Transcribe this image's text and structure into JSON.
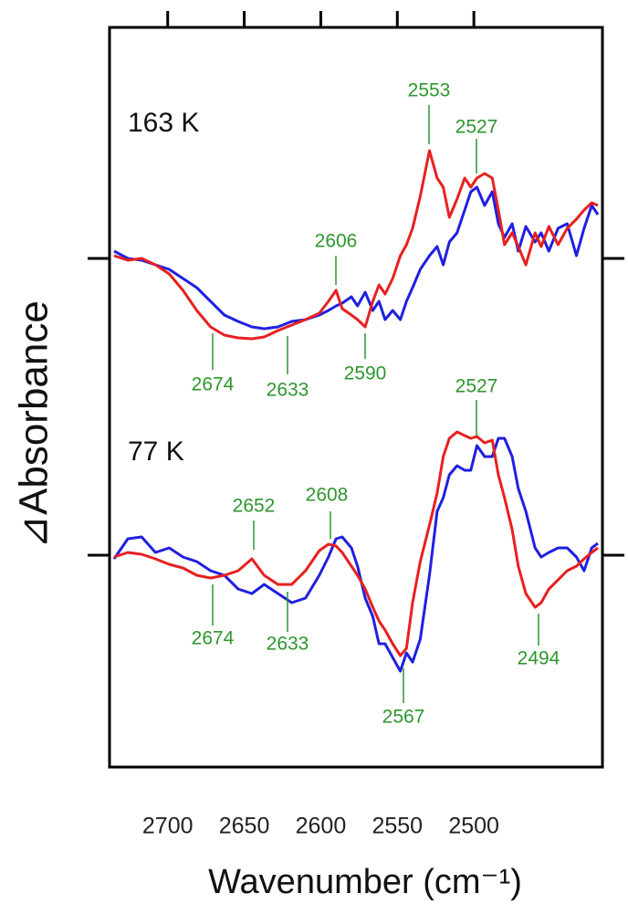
{
  "chart_data": {
    "type": "line",
    "y_label": "⊿Absorbance",
    "x_label": "Wavenumber (cm⁻¹)",
    "panel_labels": [
      "163 K",
      "77 K"
    ],
    "annotations": [
      "2553",
      "2527",
      "2606",
      "2674",
      "2633",
      "2590",
      "2527",
      "2652",
      "2608",
      "2674",
      "2633",
      "2567",
      "2494"
    ],
    "xlim": [
      2738,
      2416
    ],
    "xticks": [
      2700,
      2650,
      2600,
      2550,
      2500
    ],
    "ylim": [
      0,
      81
    ],
    "yticks": [
      23.2,
      55.7
    ],
    "x": [
      2735,
      2726,
      2717,
      2708,
      2699,
      2690,
      2681,
      2672,
      2663,
      2654,
      2645,
      2637,
      2628,
      2619,
      2610,
      2601,
      2595,
      2590,
      2586,
      2580,
      2576,
      2571,
      2566,
      2562,
      2558,
      2553,
      2548,
      2544,
      2540,
      2535,
      2529,
      2524,
      2520,
      2516,
      2511,
      2506,
      2502,
      2498,
      2493,
      2488,
      2484,
      2480,
      2475,
      2471,
      2466,
      2460,
      2456,
      2451,
      2445,
      2439,
      2433,
      2428,
      2423,
      2419
    ],
    "series": [
      {
        "color": "#2020e0",
        "values": [
          56.5,
          55.7,
          55.5,
          55,
          54.5,
          53.5,
          52.5,
          51,
          49.5,
          48.8,
          48.2,
          48,
          48.2,
          48.8,
          49,
          49.5,
          50,
          50.5,
          50.8,
          51.5,
          50.5,
          52,
          50,
          51,
          49,
          50,
          49,
          51,
          52.5,
          54.5,
          56,
          57,
          55,
          57.5,
          58.5,
          61,
          63,
          63.5,
          61.5,
          63,
          59.5,
          58,
          59.5,
          56.5,
          59.2,
          57.5,
          58.5,
          56.5,
          59,
          59.5,
          56,
          59,
          61.5,
          60.5
        ]
      },
      {
        "color": "#e82020",
        "values": [
          56,
          55.5,
          55.7,
          55,
          54,
          52.2,
          50,
          48.2,
          47.3,
          47,
          46.9,
          47.1,
          47.8,
          48.4,
          49,
          49.7,
          51,
          52.2,
          50.2,
          49.5,
          49,
          48.2,
          51,
          52.8,
          51.8,
          53.5,
          56,
          57.2,
          59,
          62.5,
          67.5,
          64.5,
          63.5,
          60.2,
          62.2,
          64.5,
          63.5,
          64.5,
          65,
          64.5,
          61,
          57.2,
          58.5,
          57,
          55,
          58.5,
          57,
          59.2,
          57.2,
          59,
          60,
          61,
          61.8,
          61.5
        ]
      },
      {
        "color": "#2020e0",
        "values": [
          22.8,
          25,
          25.2,
          23.5,
          24,
          23,
          22.5,
          21.5,
          21,
          19.5,
          19,
          20,
          19,
          18,
          18.5,
          21,
          23,
          25,
          25.2,
          24,
          22,
          18.5,
          16.5,
          13.5,
          13.5,
          12,
          10.5,
          12.5,
          11.5,
          14,
          21,
          28,
          29.5,
          32,
          33,
          32.5,
          32.5,
          35.2,
          34,
          34,
          36,
          36,
          34,
          30.5,
          28,
          24,
          23,
          23.5,
          24,
          24,
          23,
          21.5,
          24,
          24.5
        ]
      },
      {
        "color": "#e82020",
        "values": [
          23,
          23.5,
          23.3,
          22.8,
          22.2,
          21.8,
          21,
          20.7,
          21,
          21.5,
          22.8,
          21,
          20,
          20,
          21.5,
          23.7,
          24.4,
          24.2,
          23.5,
          22,
          21,
          19.5,
          17.5,
          16,
          15,
          13.5,
          12.2,
          13,
          18,
          22.5,
          26.5,
          30,
          34,
          36,
          36.7,
          36.3,
          36,
          36.2,
          35.5,
          35.8,
          32,
          29.5,
          26,
          22,
          19,
          17.5,
          18,
          19.5,
          20.5,
          21.5,
          22,
          22.8,
          23.5,
          24
        ]
      }
    ]
  }
}
